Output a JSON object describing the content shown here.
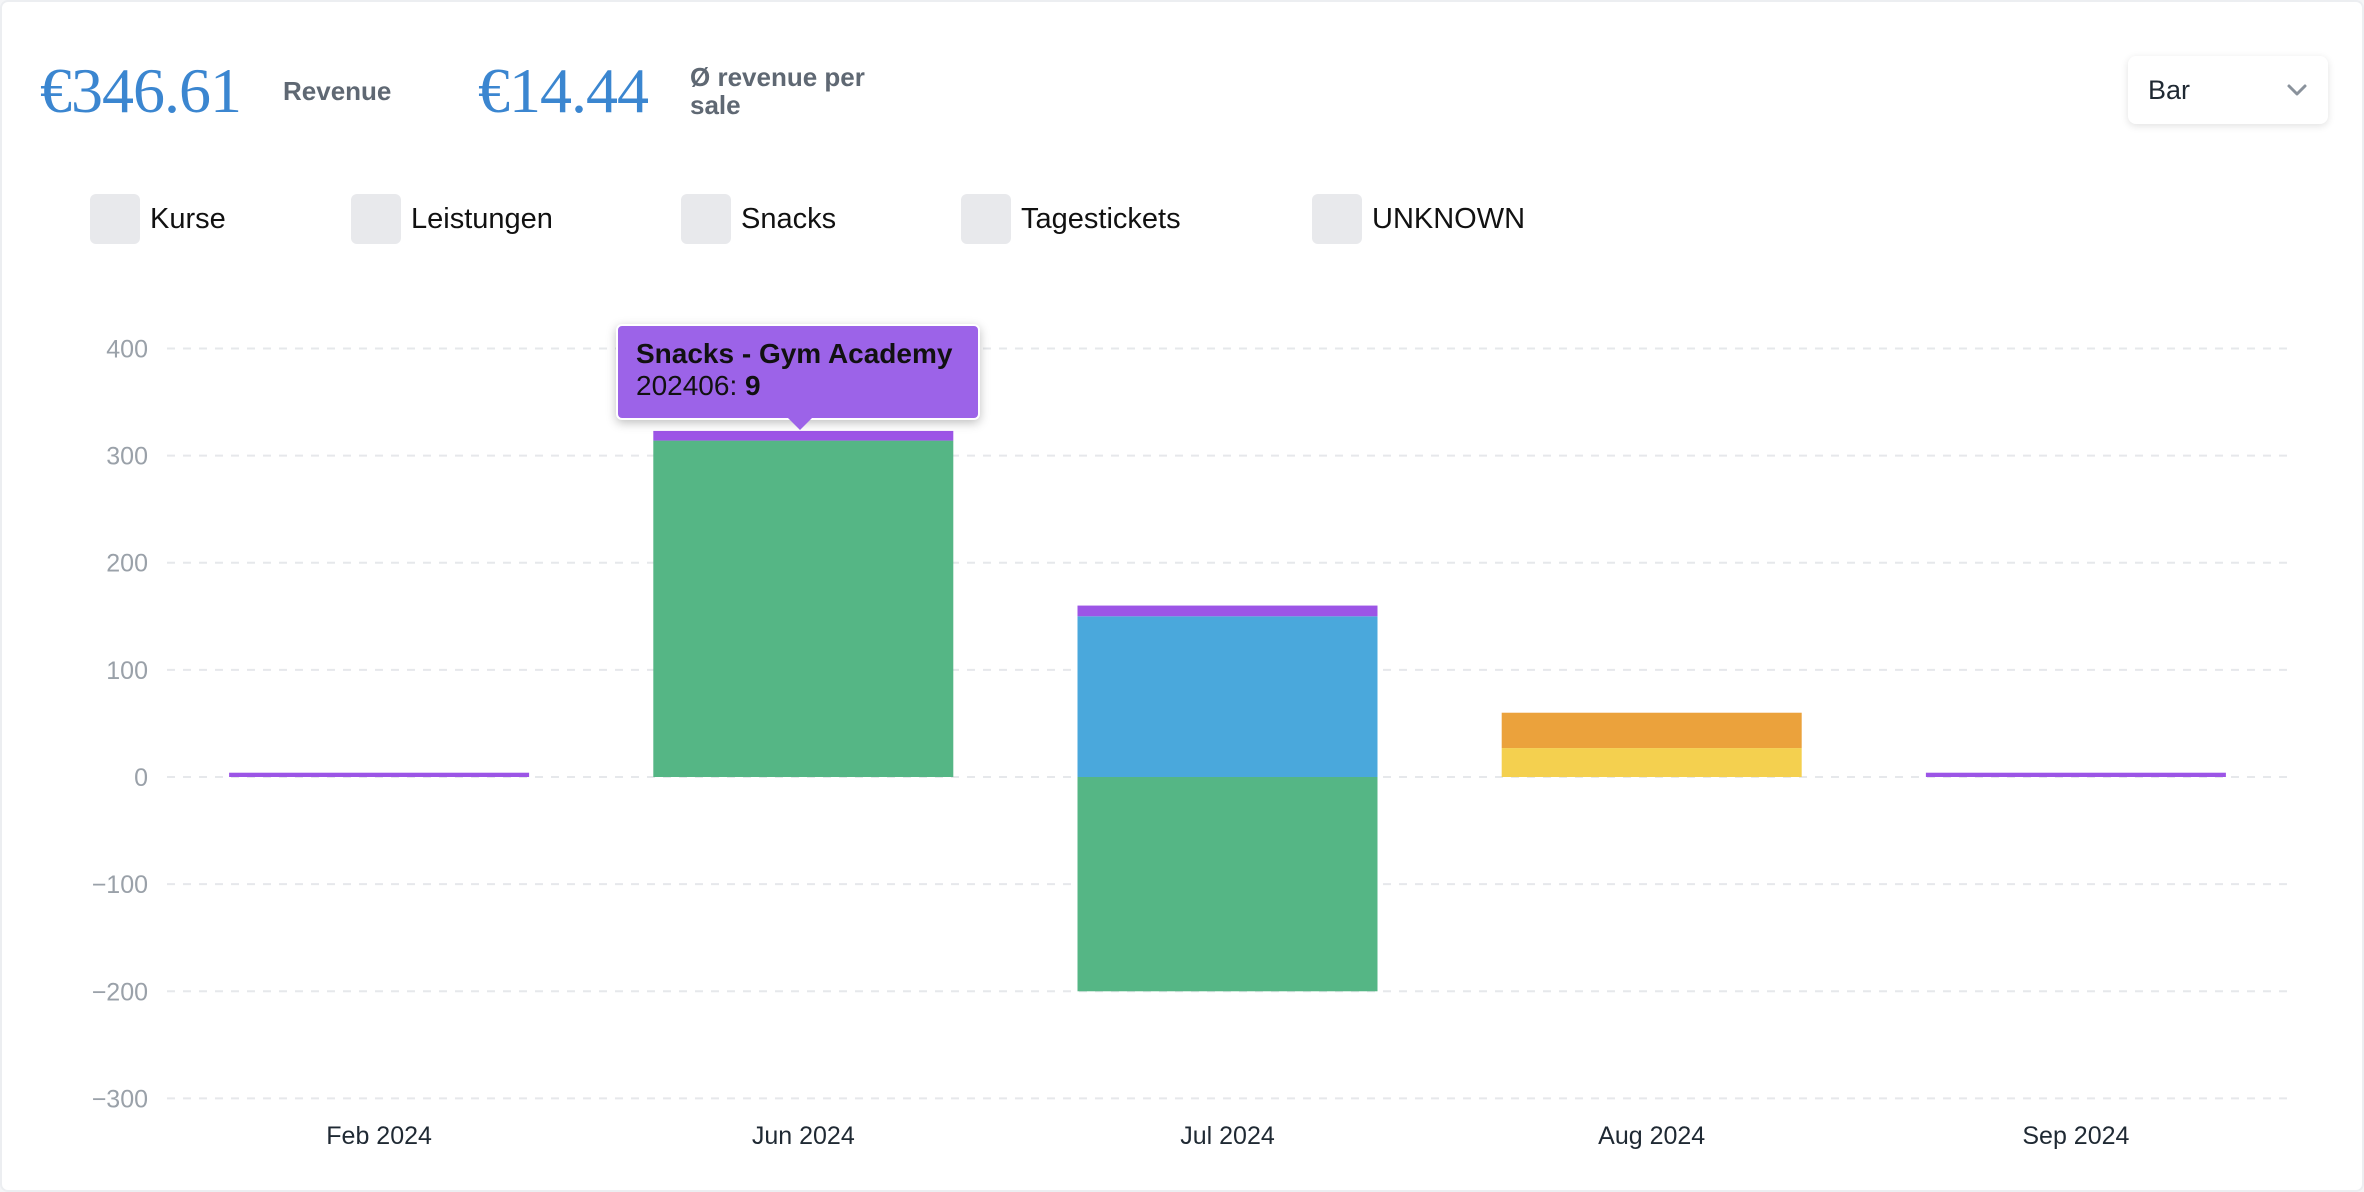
{
  "kpis": {
    "revenue_value": "€346.61",
    "revenue_label": "Revenue",
    "avg_value": "€14.44",
    "avg_label": "Ø revenue per sale"
  },
  "chart_type_select": {
    "value": "Bar"
  },
  "legend": [
    {
      "label": "Kurse",
      "color": "#e8e9ec"
    },
    {
      "label": "Leistungen",
      "color": "#e8e9ec"
    },
    {
      "label": "Snacks",
      "color": "#e8e9ec"
    },
    {
      "label": "Tagestickets",
      "color": "#e8e9ec"
    },
    {
      "label": "UNKNOWN",
      "color": "#e8e9ec"
    }
  ],
  "tooltip": {
    "title": "Snacks - Gym Academy",
    "key": "202406",
    "value": "9"
  },
  "chart_data": {
    "type": "bar",
    "stacked": true,
    "categories": [
      "Feb 2024",
      "Jun 2024",
      "Jul 2024",
      "Aug 2024",
      "Sep 2024"
    ],
    "ylim": [
      -300,
      400
    ],
    "yticks": [
      400,
      300,
      200,
      100,
      0,
      -100,
      -200,
      -300
    ],
    "grid": true,
    "series": [
      {
        "color": "#55b685",
        "values": [
          0,
          314,
          -200,
          0,
          0
        ]
      },
      {
        "color": "#4aa8dc",
        "values": [
          0,
          0,
          150,
          0,
          0
        ]
      },
      {
        "color": "#f4d04f",
        "values": [
          0,
          0,
          0,
          27,
          0
        ]
      },
      {
        "color": "#eba23c",
        "values": [
          0,
          0,
          0,
          33,
          0
        ]
      },
      {
        "color": "#9c55e6",
        "values": [
          4,
          9,
          10,
          0,
          4
        ]
      }
    ]
  }
}
